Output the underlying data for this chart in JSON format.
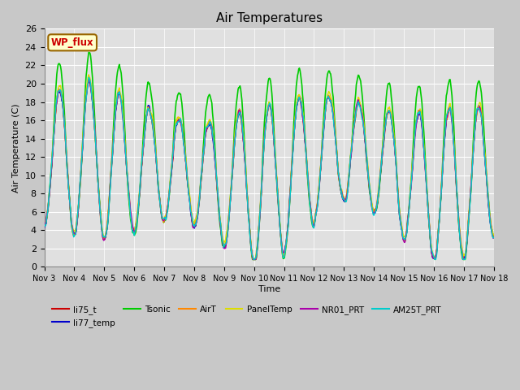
{
  "title": "Air Temperatures",
  "xlabel": "Time",
  "ylabel": "Air Temperature (C)",
  "ylim": [
    0,
    26
  ],
  "yticks": [
    0,
    2,
    4,
    6,
    8,
    10,
    12,
    14,
    16,
    18,
    20,
    22,
    24,
    26
  ],
  "start_day": 3,
  "end_day": 18,
  "n_points": 720,
  "series_order": [
    "li75_t",
    "li77_temp",
    "Tsonic",
    "AirT",
    "PanelTemp",
    "NR01_PRT",
    "AM25T_PRT"
  ],
  "series_colors": {
    "li75_t": "#cc0000",
    "li77_temp": "#0000cc",
    "Tsonic": "#00cc00",
    "AirT": "#ff8800",
    "PanelTemp": "#dddd00",
    "NR01_PRT": "#aa00aa",
    "AM25T_PRT": "#00cccc"
  },
  "series_lw": {
    "li75_t": 1.0,
    "li77_temp": 1.0,
    "Tsonic": 1.2,
    "AirT": 1.0,
    "PanelTemp": 1.0,
    "NR01_PRT": 1.0,
    "AM25T_PRT": 1.0
  },
  "legend_box": {
    "text": "WP_flux",
    "facecolor": "#ffffcc",
    "edgecolor": "#996600",
    "textcolor": "#cc0000"
  },
  "fig_facecolor": "#c8c8c8",
  "ax_facecolor": "#e0e0e0",
  "grid_color": "#ffffff"
}
